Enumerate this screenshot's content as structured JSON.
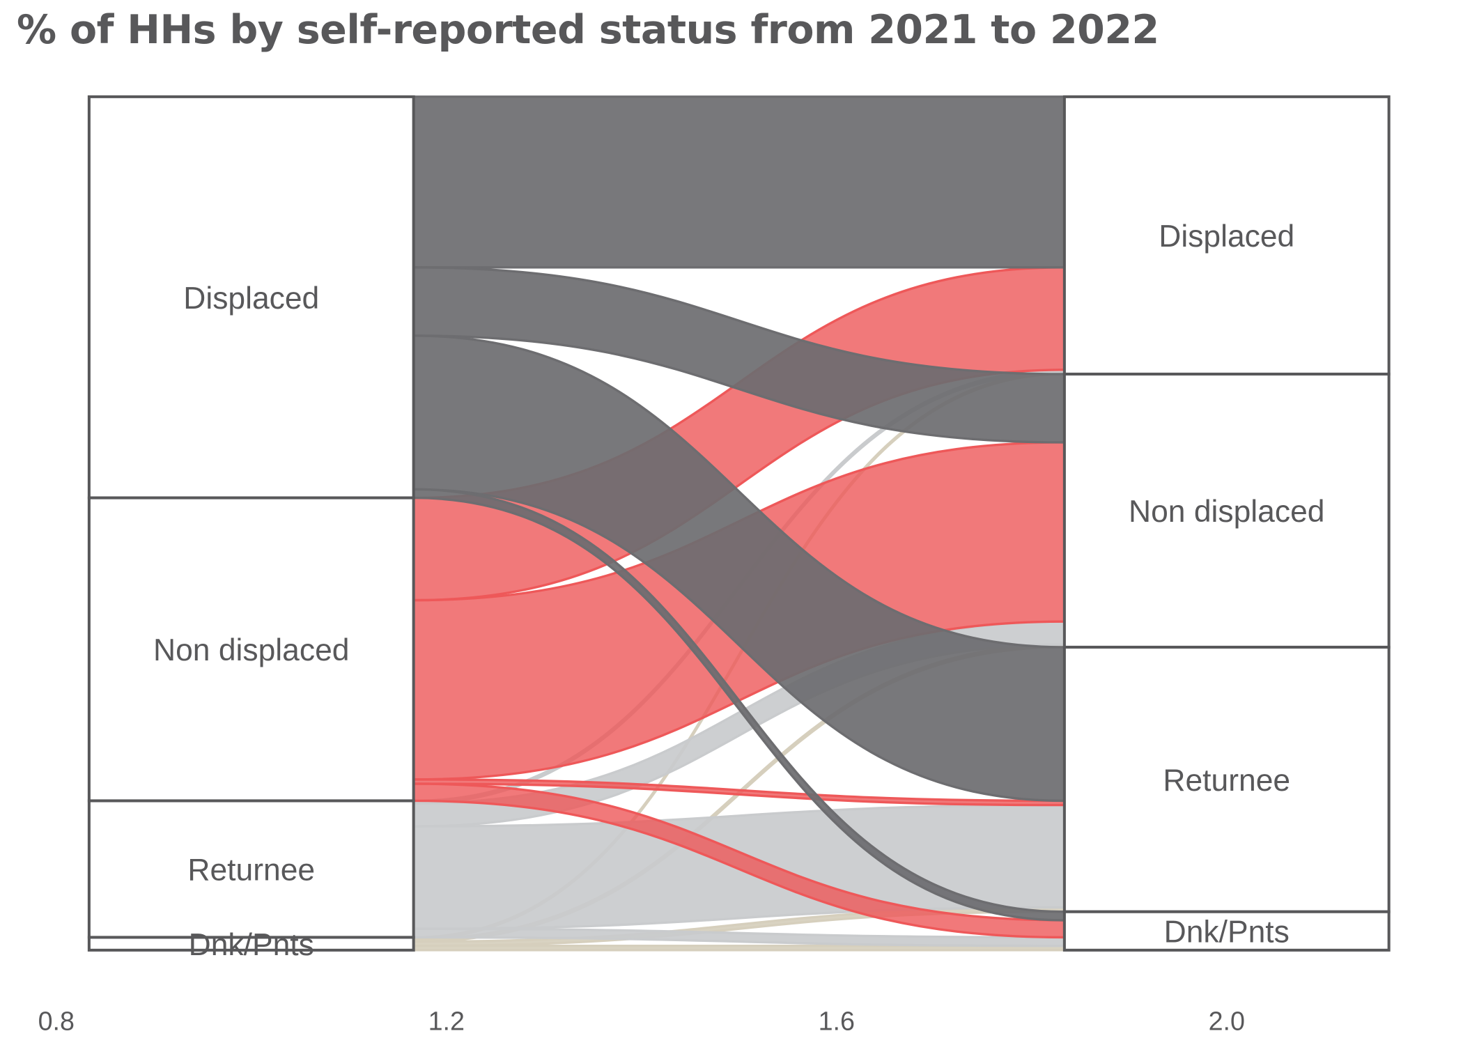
{
  "chart_data": {
    "type": "alluvial",
    "title": "% of HHs by self-reported status from 2021 to 2022",
    "xlabel": "",
    "ylabel": "",
    "x_ticks": [
      "0.8",
      "1.2",
      "1.6",
      "2.0"
    ],
    "x_tick_values": [
      0.8,
      1.2,
      1.6,
      2.0
    ],
    "xlim": [
      0.8,
      2.2
    ],
    "axes": [
      1,
      2
    ],
    "categories": [
      "Displaced",
      "Non displaced",
      "Returnee",
      "Dnk/Pnts"
    ],
    "colors": {
      "Displaced": "#6d6d70",
      "Non displaced": "#ee5859",
      "Returnee": "#c9cbcd",
      "Dnk/Pnts": "#d6cfbd"
    },
    "flows": [
      {
        "from": "Displaced",
        "to": "Displaced",
        "value": 20
      },
      {
        "from": "Displaced",
        "to": "Non displaced",
        "value": 8
      },
      {
        "from": "Displaced",
        "to": "Returnee",
        "value": 18
      },
      {
        "from": "Displaced",
        "to": "Dnk/Pnts",
        "value": 1
      },
      {
        "from": "Non displaced",
        "to": "Displaced",
        "value": 12
      },
      {
        "from": "Non displaced",
        "to": "Non displaced",
        "value": 21
      },
      {
        "from": "Non displaced",
        "to": "Returnee",
        "value": 0.5
      },
      {
        "from": "Non displaced",
        "to": "Dnk/Pnts",
        "value": 2
      },
      {
        "from": "Returnee",
        "to": "Displaced",
        "value": 0.3
      },
      {
        "from": "Returnee",
        "to": "Non displaced",
        "value": 2.7
      },
      {
        "from": "Returnee",
        "to": "Returnee",
        "value": 12
      },
      {
        "from": "Returnee",
        "to": "Dnk/Pnts",
        "value": 1
      },
      {
        "from": "Dnk/Pnts",
        "to": "Displaced",
        "value": 0.2
      },
      {
        "from": "Dnk/Pnts",
        "to": "Non displaced",
        "value": 0.3
      },
      {
        "from": "Dnk/Pnts",
        "to": "Returnee",
        "value": 0.5
      },
      {
        "from": "Dnk/Pnts",
        "to": "Dnk/Pnts",
        "value": 0.5
      }
    ],
    "grid": false,
    "legend": "none"
  }
}
